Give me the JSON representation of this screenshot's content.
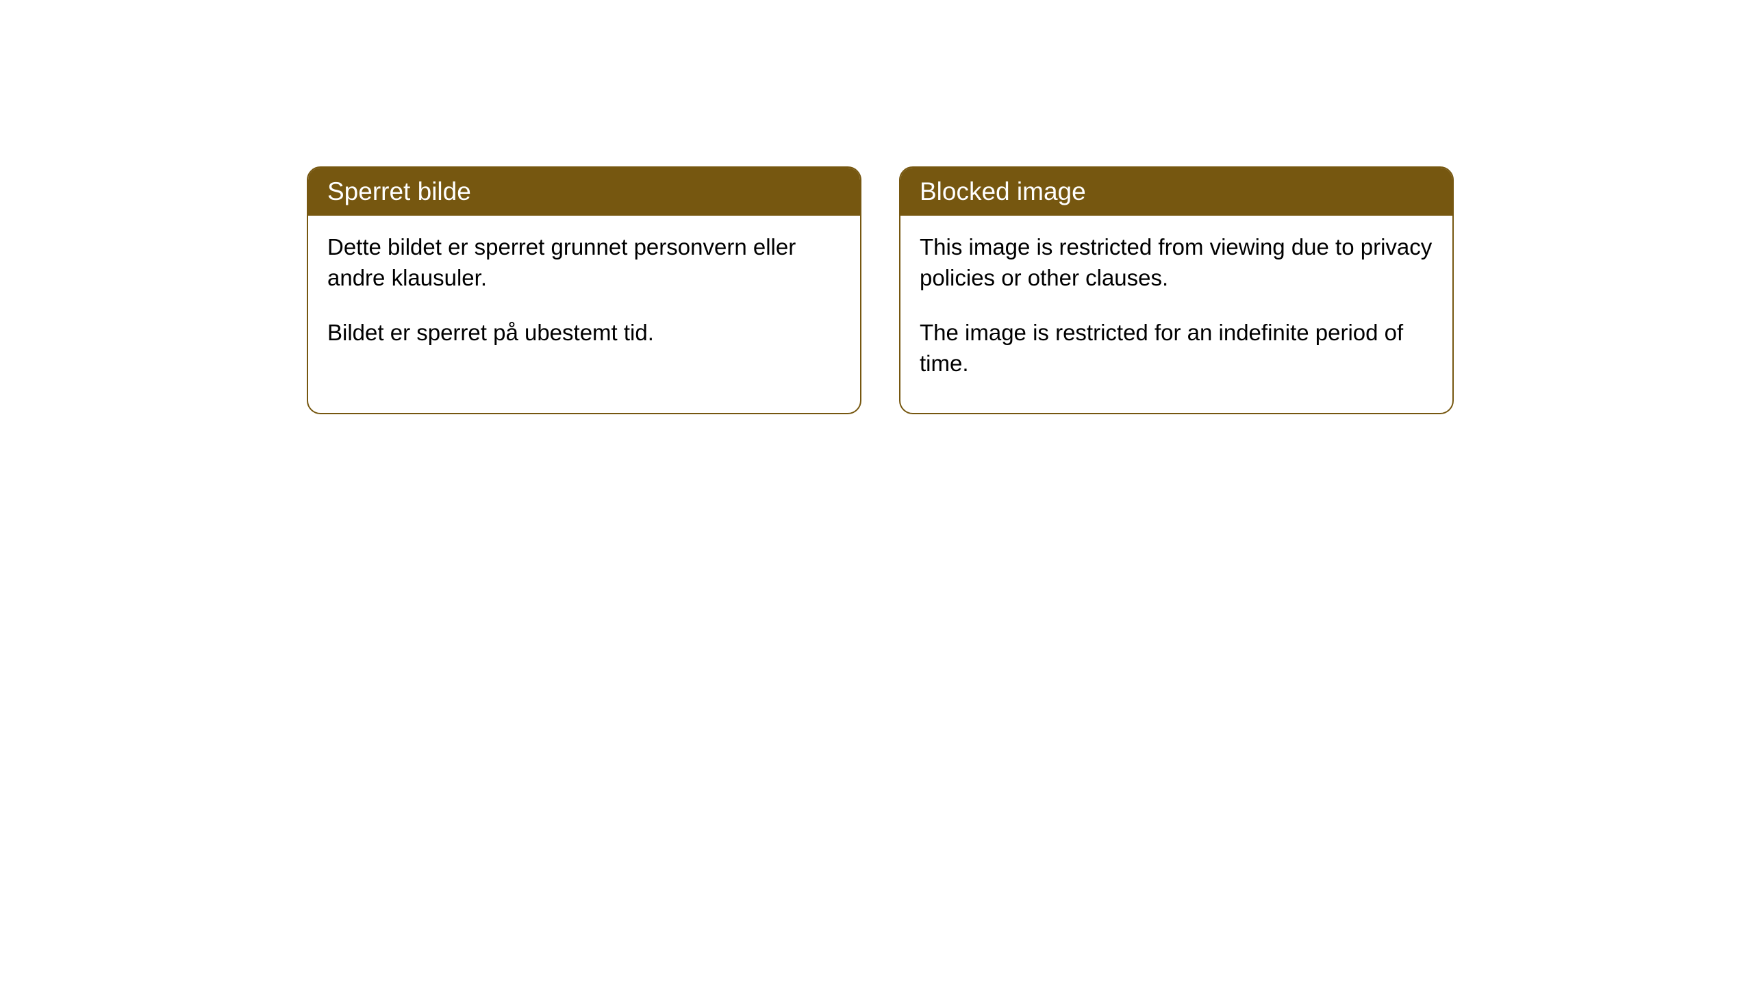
{
  "cards": [
    {
      "title": "Sperret bilde",
      "paragraph1": "Dette bildet er sperret grunnet personvern eller andre klausuler.",
      "paragraph2": "Bildet er sperret på ubestemt tid."
    },
    {
      "title": "Blocked image",
      "paragraph1": "This image is restricted from viewing due to privacy policies or other clauses.",
      "paragraph2": "The image is restricted for an indefinite period of time."
    }
  ],
  "styling": {
    "header_background": "#765710",
    "header_text_color": "#ffffff",
    "border_color": "#765710",
    "body_background": "#ffffff",
    "body_text_color": "#000000",
    "border_radius": 20,
    "header_fontsize": 37,
    "body_fontsize": 33
  }
}
